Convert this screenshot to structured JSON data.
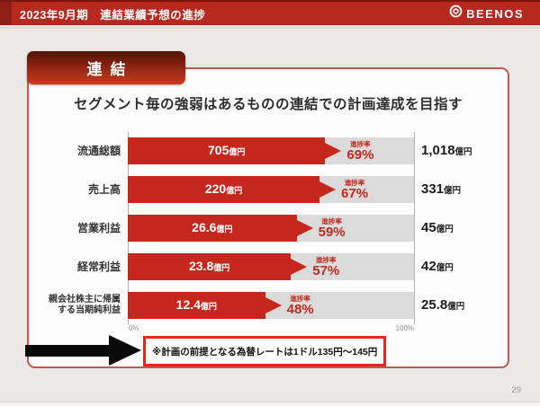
{
  "header": {
    "title": "2023年9月期　連結業績予想の進捗",
    "brand": "BEENOS"
  },
  "slide": {
    "badge": "連結",
    "title": "セグメント毎の強弱はあるものの連結での計画達成を目指す",
    "note": "※計画の前提となる為替レートは1ドル135円〜145円",
    "page_number": "29"
  },
  "chart_data": {
    "type": "bar",
    "orientation": "horizontal",
    "title": "セグメント毎の強弱はあるものの連結での計画達成を目指す",
    "progress_caption": "進捗率",
    "x_axis": {
      "min": 0,
      "max": 100,
      "min_label": "0%",
      "max_label": "100%"
    },
    "unit": "億円",
    "rows": [
      {
        "category": "流通総額",
        "category_line2": "",
        "actual": 705,
        "actual_label": "705",
        "unit": "億円",
        "progress_pct": 69,
        "progress_label": "69%",
        "plan": 1018,
        "plan_label": "1,018",
        "plan_unit": "億円"
      },
      {
        "category": "売上高",
        "category_line2": "",
        "actual": 220,
        "actual_label": "220",
        "unit": "億円",
        "progress_pct": 67,
        "progress_label": "67%",
        "plan": 331,
        "plan_label": "331",
        "plan_unit": "億円"
      },
      {
        "category": "営業利益",
        "category_line2": "",
        "actual": 26.6,
        "actual_label": "26.6",
        "unit": "億円",
        "progress_pct": 59,
        "progress_label": "59%",
        "plan": 45,
        "plan_label": "45",
        "plan_unit": "億円"
      },
      {
        "category": "経常利益",
        "category_line2": "",
        "actual": 23.8,
        "actual_label": "23.8",
        "unit": "億円",
        "progress_pct": 57,
        "progress_label": "57%",
        "plan": 42,
        "plan_label": "42",
        "plan_unit": "億円"
      },
      {
        "category": "親会社株主に帰属",
        "category_line2": "する当期純利益",
        "actual": 12.4,
        "actual_label": "12.4",
        "unit": "億円",
        "progress_pct": 48,
        "progress_label": "48%",
        "plan": 25.8,
        "plan_label": "25.8",
        "plan_unit": "億円"
      }
    ],
    "colors": {
      "bar": "#c5271d",
      "track": "#dbdbdb",
      "progress_text": "#c0281e",
      "header_red": "#b7281f",
      "note_border": "#e8271c",
      "slide_border": "#c4584b"
    }
  }
}
